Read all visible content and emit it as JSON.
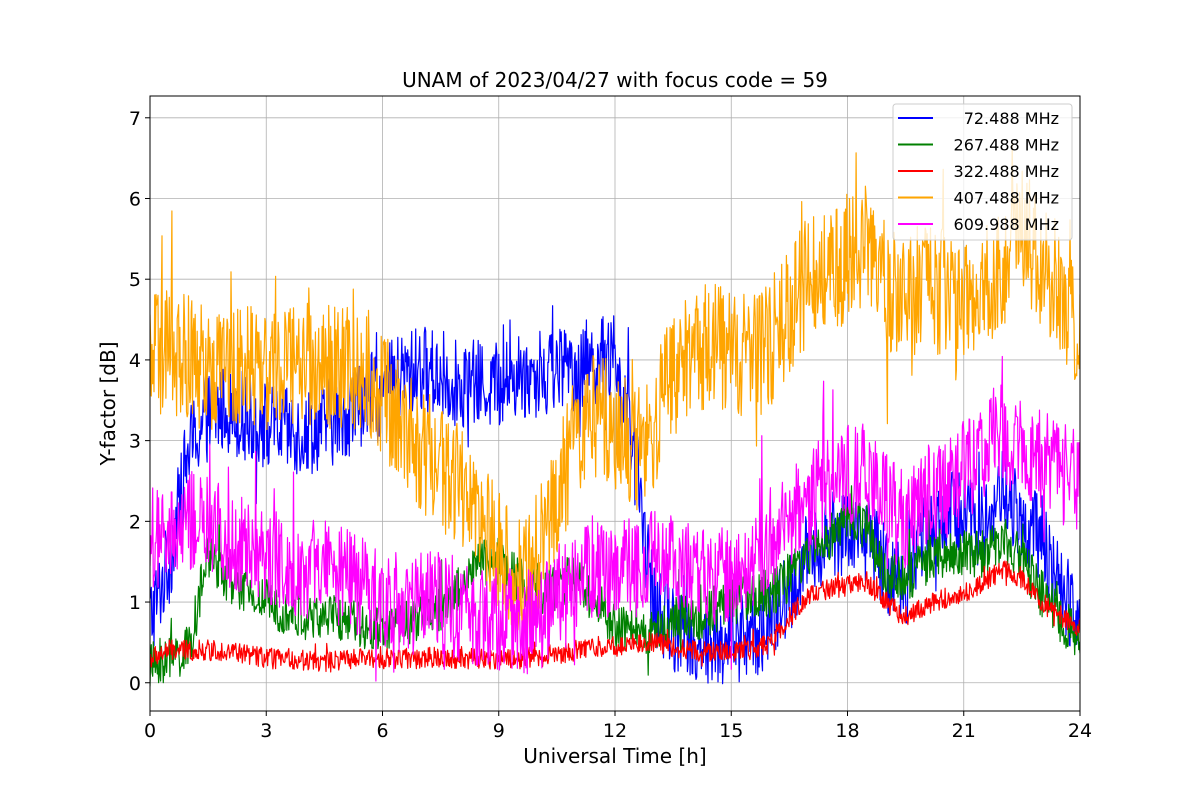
{
  "chart_data": {
    "type": "line",
    "title": "UNAM of 2023/04/27 with focus code = 59",
    "xlabel": "Universal Time [h]",
    "ylabel": "Y-factor [dB]",
    "xlim": [
      0,
      24
    ],
    "ylim": [
      -0.35,
      7.27
    ],
    "xticks": [
      0,
      3,
      6,
      9,
      12,
      15,
      18,
      21,
      24
    ],
    "yticks": [
      0,
      1,
      2,
      3,
      4,
      5,
      6,
      7
    ],
    "grid": true,
    "legend_position": "upper right",
    "x": [
      0,
      0.5,
      1,
      1.5,
      2,
      2.5,
      3,
      3.5,
      4,
      4.5,
      5,
      5.5,
      6,
      6.5,
      7,
      7.5,
      8,
      8.5,
      9,
      9.5,
      10,
      10.5,
      11,
      11.5,
      12,
      12.5,
      13,
      13.5,
      14,
      14.5,
      15,
      15.5,
      16,
      16.5,
      17,
      17.5,
      18,
      18.5,
      19,
      19.5,
      20,
      20.5,
      21,
      21.5,
      22,
      22.5,
      23,
      23.5,
      24
    ],
    "series": [
      {
        "name": "  72.488 MHz",
        "color": "#0000ff",
        "noise": 0.55,
        "values": [
          0.8,
          1.5,
          2.9,
          3.3,
          3.4,
          3.3,
          3.2,
          3.1,
          3.1,
          3.2,
          3.3,
          3.5,
          3.6,
          3.8,
          3.9,
          3.8,
          3.7,
          3.7,
          3.7,
          3.8,
          3.8,
          3.9,
          3.9,
          4.0,
          4.0,
          2.8,
          1.0,
          0.7,
          0.5,
          0.5,
          0.5,
          0.6,
          0.7,
          1.1,
          1.6,
          1.8,
          1.9,
          1.8,
          1.4,
          1.2,
          2.0,
          2.0,
          2.2,
          1.9,
          2.4,
          2.0,
          1.8,
          1.1,
          0.9
        ]
      },
      {
        "name": "267.488 MHz",
        "color": "#008000",
        "noise": 0.3,
        "values": [
          0.2,
          0.3,
          0.4,
          1.6,
          1.3,
          1.1,
          1.0,
          0.9,
          0.8,
          0.8,
          0.8,
          0.7,
          0.7,
          0.7,
          0.8,
          0.9,
          1.2,
          1.5,
          1.5,
          1.3,
          1.1,
          1.2,
          1.3,
          1.0,
          0.7,
          0.6,
          0.6,
          0.8,
          0.8,
          0.9,
          1.0,
          1.1,
          1.1,
          1.3,
          1.6,
          1.8,
          2.1,
          1.9,
          1.3,
          1.3,
          1.5,
          1.6,
          1.6,
          1.6,
          1.8,
          1.5,
          1.1,
          0.8,
          0.5
        ]
      },
      {
        "name": "322.488 MHz",
        "color": "#ff0000",
        "noise": 0.13,
        "values": [
          0.3,
          0.4,
          0.4,
          0.4,
          0.4,
          0.35,
          0.3,
          0.3,
          0.28,
          0.25,
          0.28,
          0.3,
          0.3,
          0.3,
          0.3,
          0.32,
          0.3,
          0.3,
          0.3,
          0.3,
          0.32,
          0.35,
          0.4,
          0.45,
          0.45,
          0.5,
          0.5,
          0.45,
          0.4,
          0.38,
          0.38,
          0.4,
          0.5,
          0.8,
          1.1,
          1.15,
          1.2,
          1.25,
          1.0,
          0.8,
          0.95,
          1.05,
          1.1,
          1.25,
          1.4,
          1.3,
          1.0,
          0.8,
          0.7
        ]
      },
      {
        "name": "407.488 MHz",
        "color": "#ffa500",
        "noise": 0.8,
        "values": [
          4.0,
          4.1,
          4.0,
          3.9,
          4.0,
          4.0,
          3.9,
          3.9,
          4.0,
          3.9,
          3.9,
          3.9,
          3.6,
          3.2,
          2.9,
          2.7,
          2.4,
          2.0,
          1.6,
          1.2,
          1.6,
          2.4,
          3.0,
          3.3,
          3.2,
          2.8,
          3.2,
          3.8,
          4.1,
          4.2,
          4.1,
          4.0,
          4.2,
          4.6,
          5.0,
          5.0,
          5.3,
          5.4,
          4.9,
          4.7,
          5.0,
          4.8,
          4.6,
          4.8,
          5.2,
          5.6,
          5.2,
          4.9,
          4.4
        ]
      },
      {
        "name": "609.988 MHz",
        "color": "#ff00ff",
        "noise": 0.65,
        "values": [
          1.8,
          1.7,
          2.0,
          1.9,
          1.8,
          1.7,
          1.6,
          1.5,
          1.4,
          1.35,
          1.3,
          1.2,
          1.1,
          1.0,
          1.0,
          1.0,
          0.9,
          0.85,
          0.8,
          0.75,
          0.75,
          1.1,
          1.3,
          1.35,
          1.4,
          1.4,
          1.5,
          1.5,
          1.4,
          1.3,
          1.3,
          1.5,
          1.8,
          2.0,
          2.2,
          2.4,
          2.6,
          2.6,
          2.2,
          2.0,
          2.3,
          2.4,
          2.6,
          2.9,
          3.1,
          2.9,
          2.8,
          2.6,
          2.5
        ]
      }
    ]
  }
}
